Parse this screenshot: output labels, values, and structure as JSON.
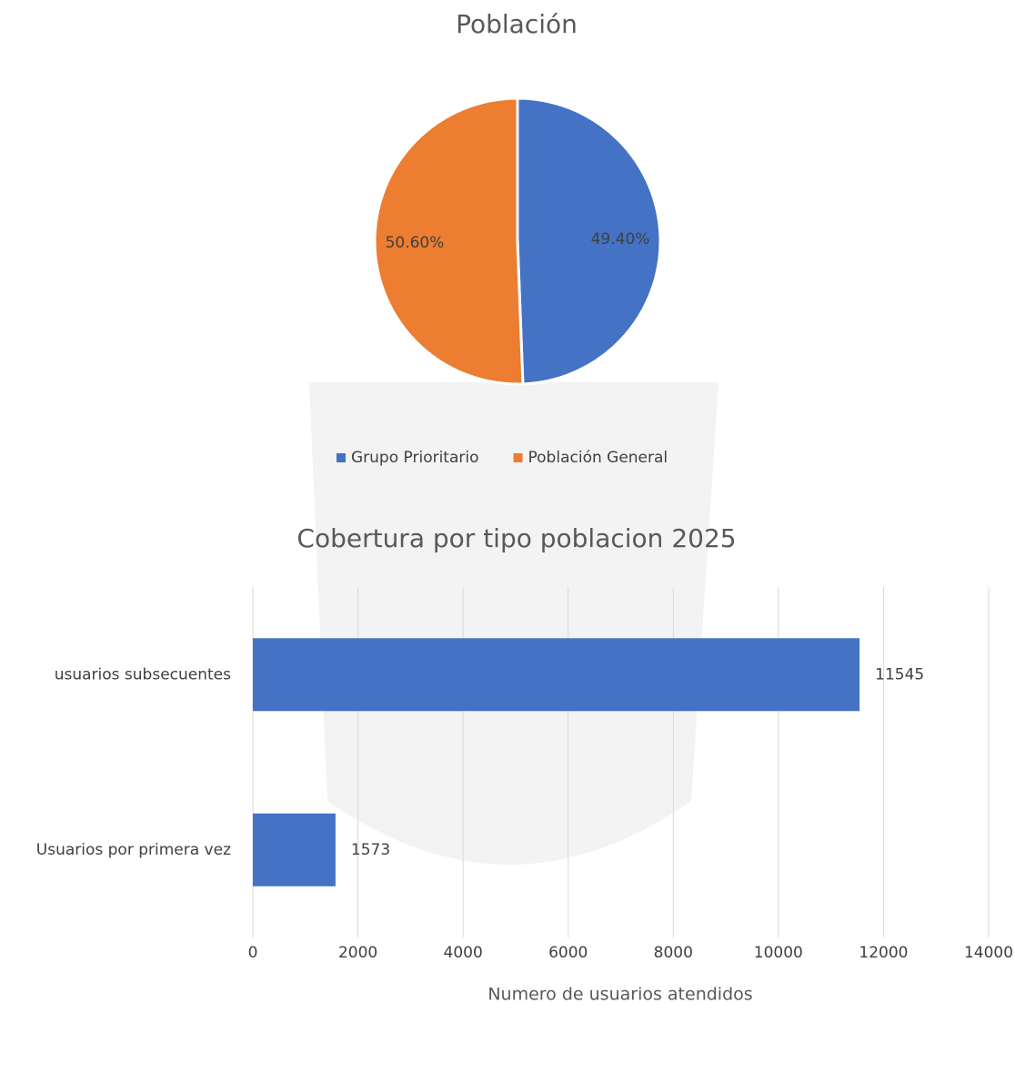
{
  "chart_data": [
    {
      "type": "pie",
      "title": "Población",
      "categories": [
        "Grupo Prioritario",
        "Población General"
      ],
      "values": [
        49.4,
        50.6
      ],
      "value_labels": [
        "49.40%",
        "50.60%"
      ],
      "colors": [
        "#4472c4",
        "#ed7d31"
      ],
      "legend": "bottom"
    },
    {
      "type": "hbar",
      "title": "Cobertura por tipo poblacion 2025",
      "categories": [
        "usuarios subsecuentes",
        "Usuarios por primera vez"
      ],
      "values": [
        11545,
        1573
      ],
      "color": "#4472c4",
      "xlabel": "Numero de usuarios atendidos",
      "xlim": [
        0,
        14000
      ],
      "xticks": [
        0,
        2000,
        4000,
        6000,
        8000,
        10000,
        12000,
        14000
      ],
      "grid": true
    }
  ]
}
